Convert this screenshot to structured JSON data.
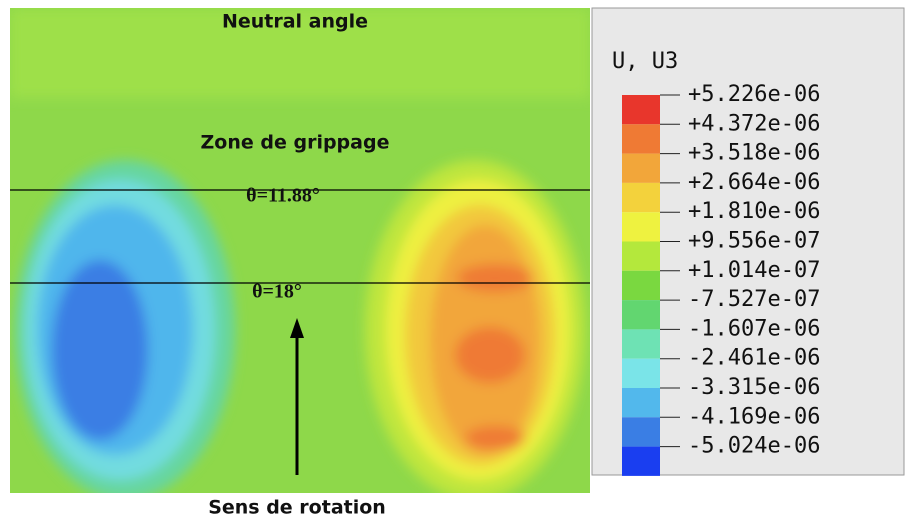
{
  "annotations": {
    "top": "Neutral angle",
    "zone": "Zone de grippage",
    "theta1": "θ=11.88°",
    "theta2": "θ=18°",
    "bottom": "Sens de rotation"
  },
  "legend": {
    "title": "U, U3",
    "labels": [
      "+5.226e-06",
      "+4.372e-06",
      "+3.518e-06",
      "+2.664e-06",
      "+1.810e-06",
      "+9.556e-07",
      "+1.014e-07",
      "-7.527e-07",
      "-1.607e-06",
      "-2.461e-06",
      "-3.315e-06",
      "-4.169e-06",
      "-5.024e-06"
    ],
    "colors": [
      "#e8362c",
      "#ef7a34",
      "#f2a63a",
      "#f3d23c",
      "#eef240",
      "#b4e83c",
      "#7ad840",
      "#62d670",
      "#6ee2b4",
      "#7ae4e8",
      "#52b8ec",
      "#3a7ee4",
      "#1a3ef0"
    ]
  }
}
